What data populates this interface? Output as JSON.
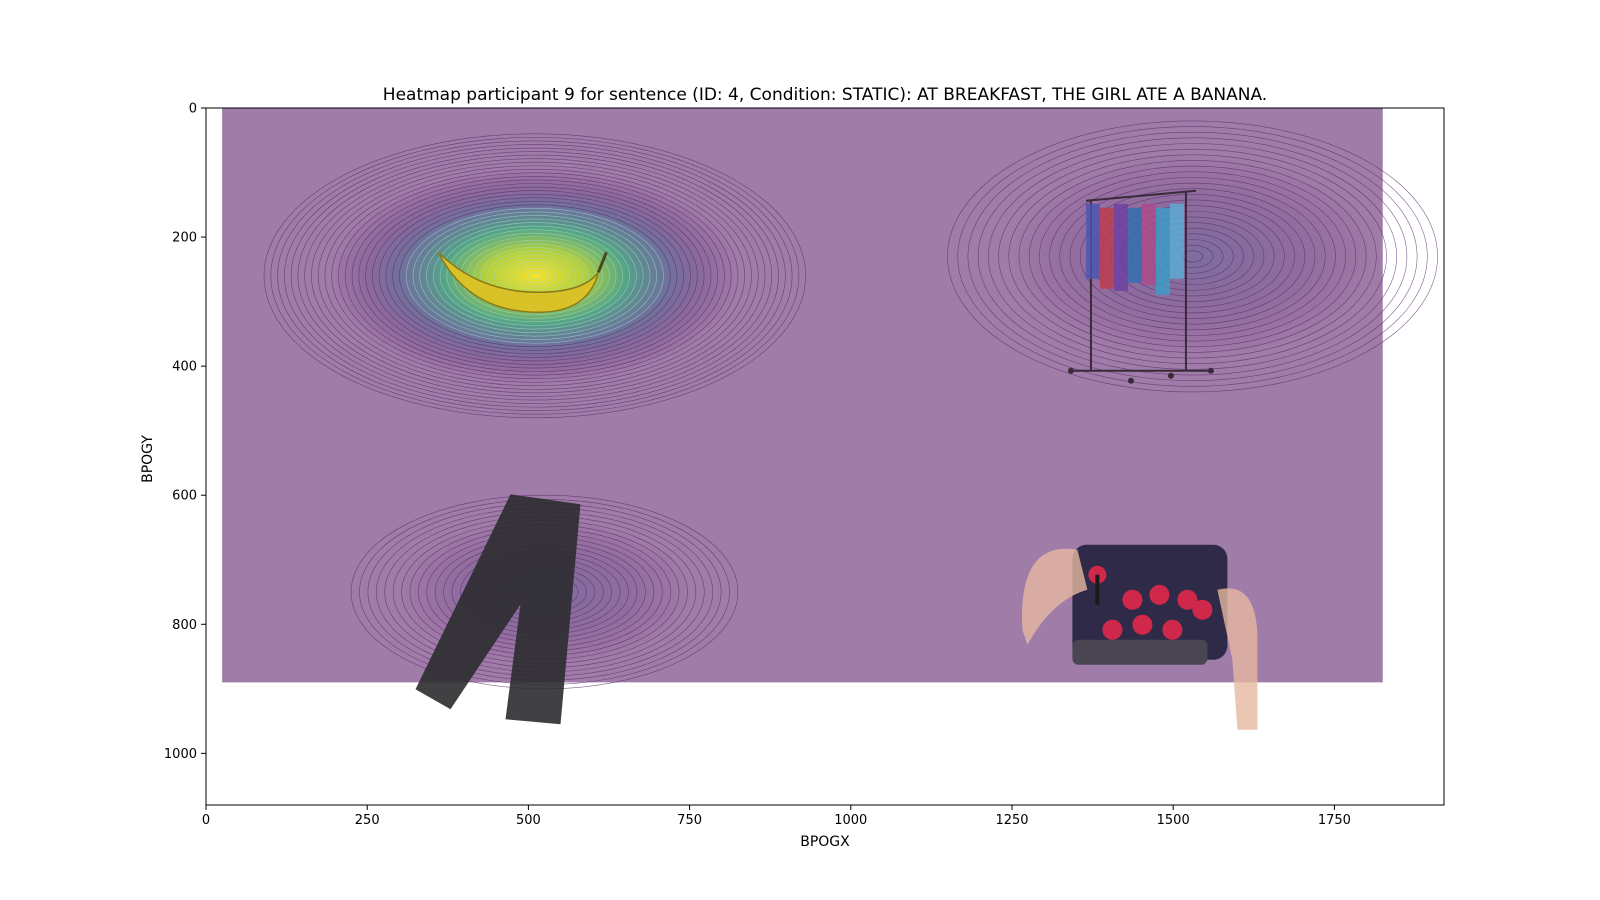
{
  "chart_data": {
    "type": "heatmap",
    "title": "Heatmap participant 9 for sentence (ID: 4, Condition: STATIC):  AT BREAKFAST, THE GIRL ATE A BANANA.",
    "xlabel": "BPOGX",
    "ylabel": "BPOGY",
    "xlim": [
      0,
      1920
    ],
    "ylim": [
      1080,
      0
    ],
    "x_ticks": [
      0,
      250,
      500,
      750,
      1000,
      1250,
      1500,
      1750
    ],
    "y_ticks": [
      0,
      200,
      400,
      600,
      800,
      1000
    ],
    "colormap": "viridis",
    "background_color": "#a07ca8",
    "heat_extent": {
      "x": [
        25,
        1825
      ],
      "y": [
        0,
        890
      ]
    },
    "fixation_clusters": [
      {
        "x": 510,
        "y": 260,
        "weight": 1.0,
        "rx": 420,
        "ry": 220
      },
      {
        "x": 1530,
        "y": 230,
        "weight": 0.42,
        "rx": 380,
        "ry": 210
      },
      {
        "x": 525,
        "y": 750,
        "weight": 0.38,
        "rx": 300,
        "ry": 150
      }
    ],
    "stimuli": [
      {
        "name": "banana",
        "x": 500,
        "y": 270
      },
      {
        "name": "clothes-rack",
        "x": 1450,
        "y": 260
      },
      {
        "name": "trousers",
        "x": 480,
        "y": 800
      },
      {
        "name": "arcade-joystick",
        "x": 1460,
        "y": 700
      }
    ],
    "grid": false,
    "legend": "none"
  }
}
